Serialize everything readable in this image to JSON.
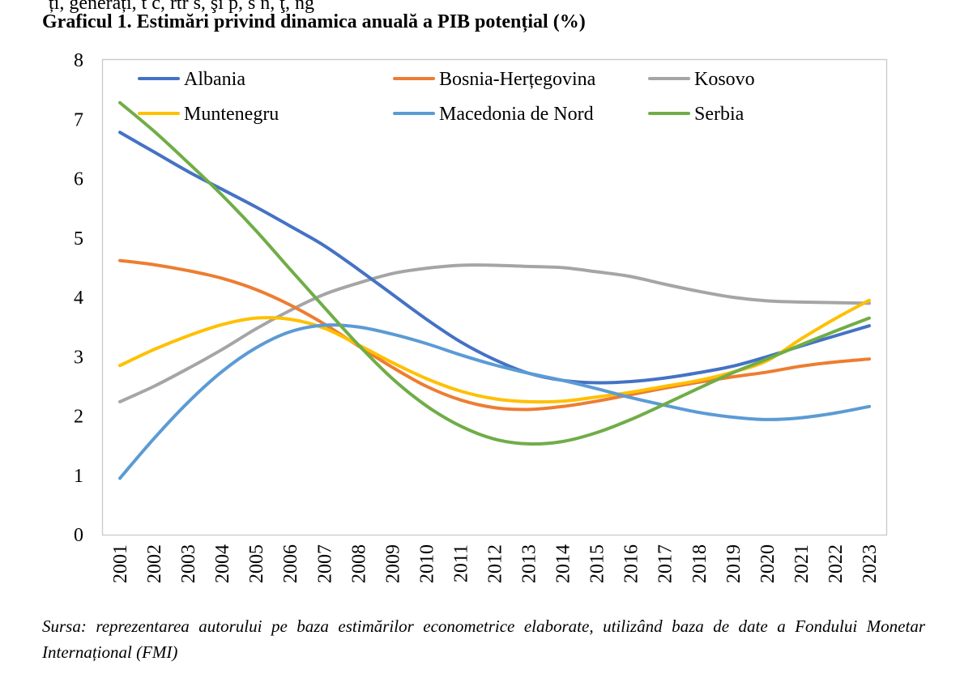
{
  "top_fragment": "ți, generați, t c, rtr s, şi p, s n, ţ, ng",
  "title": "Graficul 1. Estimări privind dinamica anuală a PIB potențial (%)",
  "source_note": "Sursa: reprezentarea autorului pe baza estimărilor econometrice elaborate, utilizând baza de date a Fondului Monetar Internațional (FMI)",
  "chart_data": {
    "type": "line",
    "title": "Graficul 1. Estimări privind dinamica anuală a PIB potențial (%)",
    "xlabel": "",
    "ylabel": "",
    "ylim": [
      0,
      8
    ],
    "yticks": [
      0,
      1,
      2,
      3,
      4,
      5,
      6,
      7,
      8
    ],
    "grid": false,
    "legend_position": "top",
    "x": [
      "2001",
      "2002",
      "2003",
      "2004",
      "2005",
      "2006",
      "2007",
      "2008",
      "2009",
      "2010",
      "2011",
      "2012",
      "2013",
      "2014",
      "2015",
      "2016",
      "2017",
      "2018",
      "2019",
      "2020",
      "2021",
      "2022",
      "2023"
    ],
    "series": [
      {
        "name": "Albania",
        "color": "#4472C4",
        "values": [
          6.78,
          6.45,
          6.12,
          5.82,
          5.52,
          5.2,
          4.87,
          4.47,
          4.05,
          3.63,
          3.25,
          2.95,
          2.72,
          2.6,
          2.56,
          2.58,
          2.64,
          2.73,
          2.84,
          3.0,
          3.18,
          3.35,
          3.52
        ]
      },
      {
        "name": "Bosnia-Herțegovina",
        "color": "#ED7D31",
        "values": [
          4.62,
          4.55,
          4.45,
          4.32,
          4.13,
          3.87,
          3.55,
          3.18,
          2.82,
          2.5,
          2.27,
          2.14,
          2.11,
          2.16,
          2.25,
          2.36,
          2.47,
          2.57,
          2.66,
          2.74,
          2.84,
          2.91,
          2.96
        ]
      },
      {
        "name": "Kosovo",
        "color": "#A5A5A5",
        "values": [
          2.24,
          2.5,
          2.8,
          3.12,
          3.47,
          3.78,
          4.05,
          4.24,
          4.4,
          4.49,
          4.54,
          4.54,
          4.52,
          4.5,
          4.43,
          4.35,
          4.22,
          4.1,
          4.0,
          3.94,
          3.92,
          3.91,
          3.9
        ]
      },
      {
        "name": "Muntenegru",
        "color": "#FFC000",
        "values": [
          2.85,
          3.12,
          3.35,
          3.54,
          3.65,
          3.63,
          3.48,
          3.2,
          2.9,
          2.63,
          2.42,
          2.29,
          2.24,
          2.25,
          2.32,
          2.4,
          2.5,
          2.6,
          2.74,
          2.93,
          3.3,
          3.64,
          3.95
        ]
      },
      {
        "name": "Macedonia de Nord",
        "color": "#5B9BD5",
        "values": [
          0.95,
          1.62,
          2.23,
          2.75,
          3.15,
          3.42,
          3.53,
          3.5,
          3.38,
          3.22,
          3.03,
          2.86,
          2.72,
          2.6,
          2.46,
          2.31,
          2.18,
          2.06,
          1.98,
          1.94,
          1.97,
          2.05,
          2.16
        ]
      },
      {
        "name": "Serbia",
        "color": "#70AD47",
        "values": [
          7.28,
          6.8,
          6.27,
          5.72,
          5.12,
          4.47,
          3.83,
          3.2,
          2.63,
          2.17,
          1.83,
          1.61,
          1.53,
          1.57,
          1.72,
          1.94,
          2.2,
          2.47,
          2.73,
          2.96,
          3.2,
          3.43,
          3.65
        ]
      }
    ]
  }
}
